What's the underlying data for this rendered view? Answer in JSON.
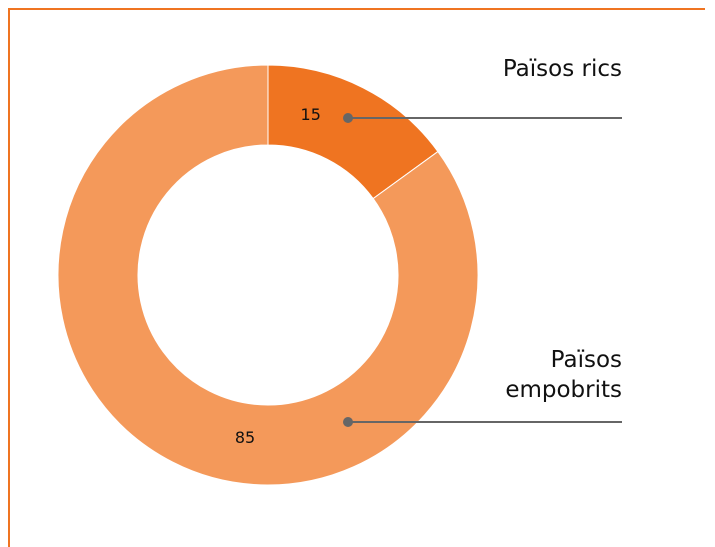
{
  "chart_data": {
    "type": "donut",
    "categories": [
      "Països rics",
      "Països empobrits"
    ],
    "values": [
      15,
      85
    ],
    "colors": [
      "#ef7421",
      "#f4995a"
    ]
  }
}
